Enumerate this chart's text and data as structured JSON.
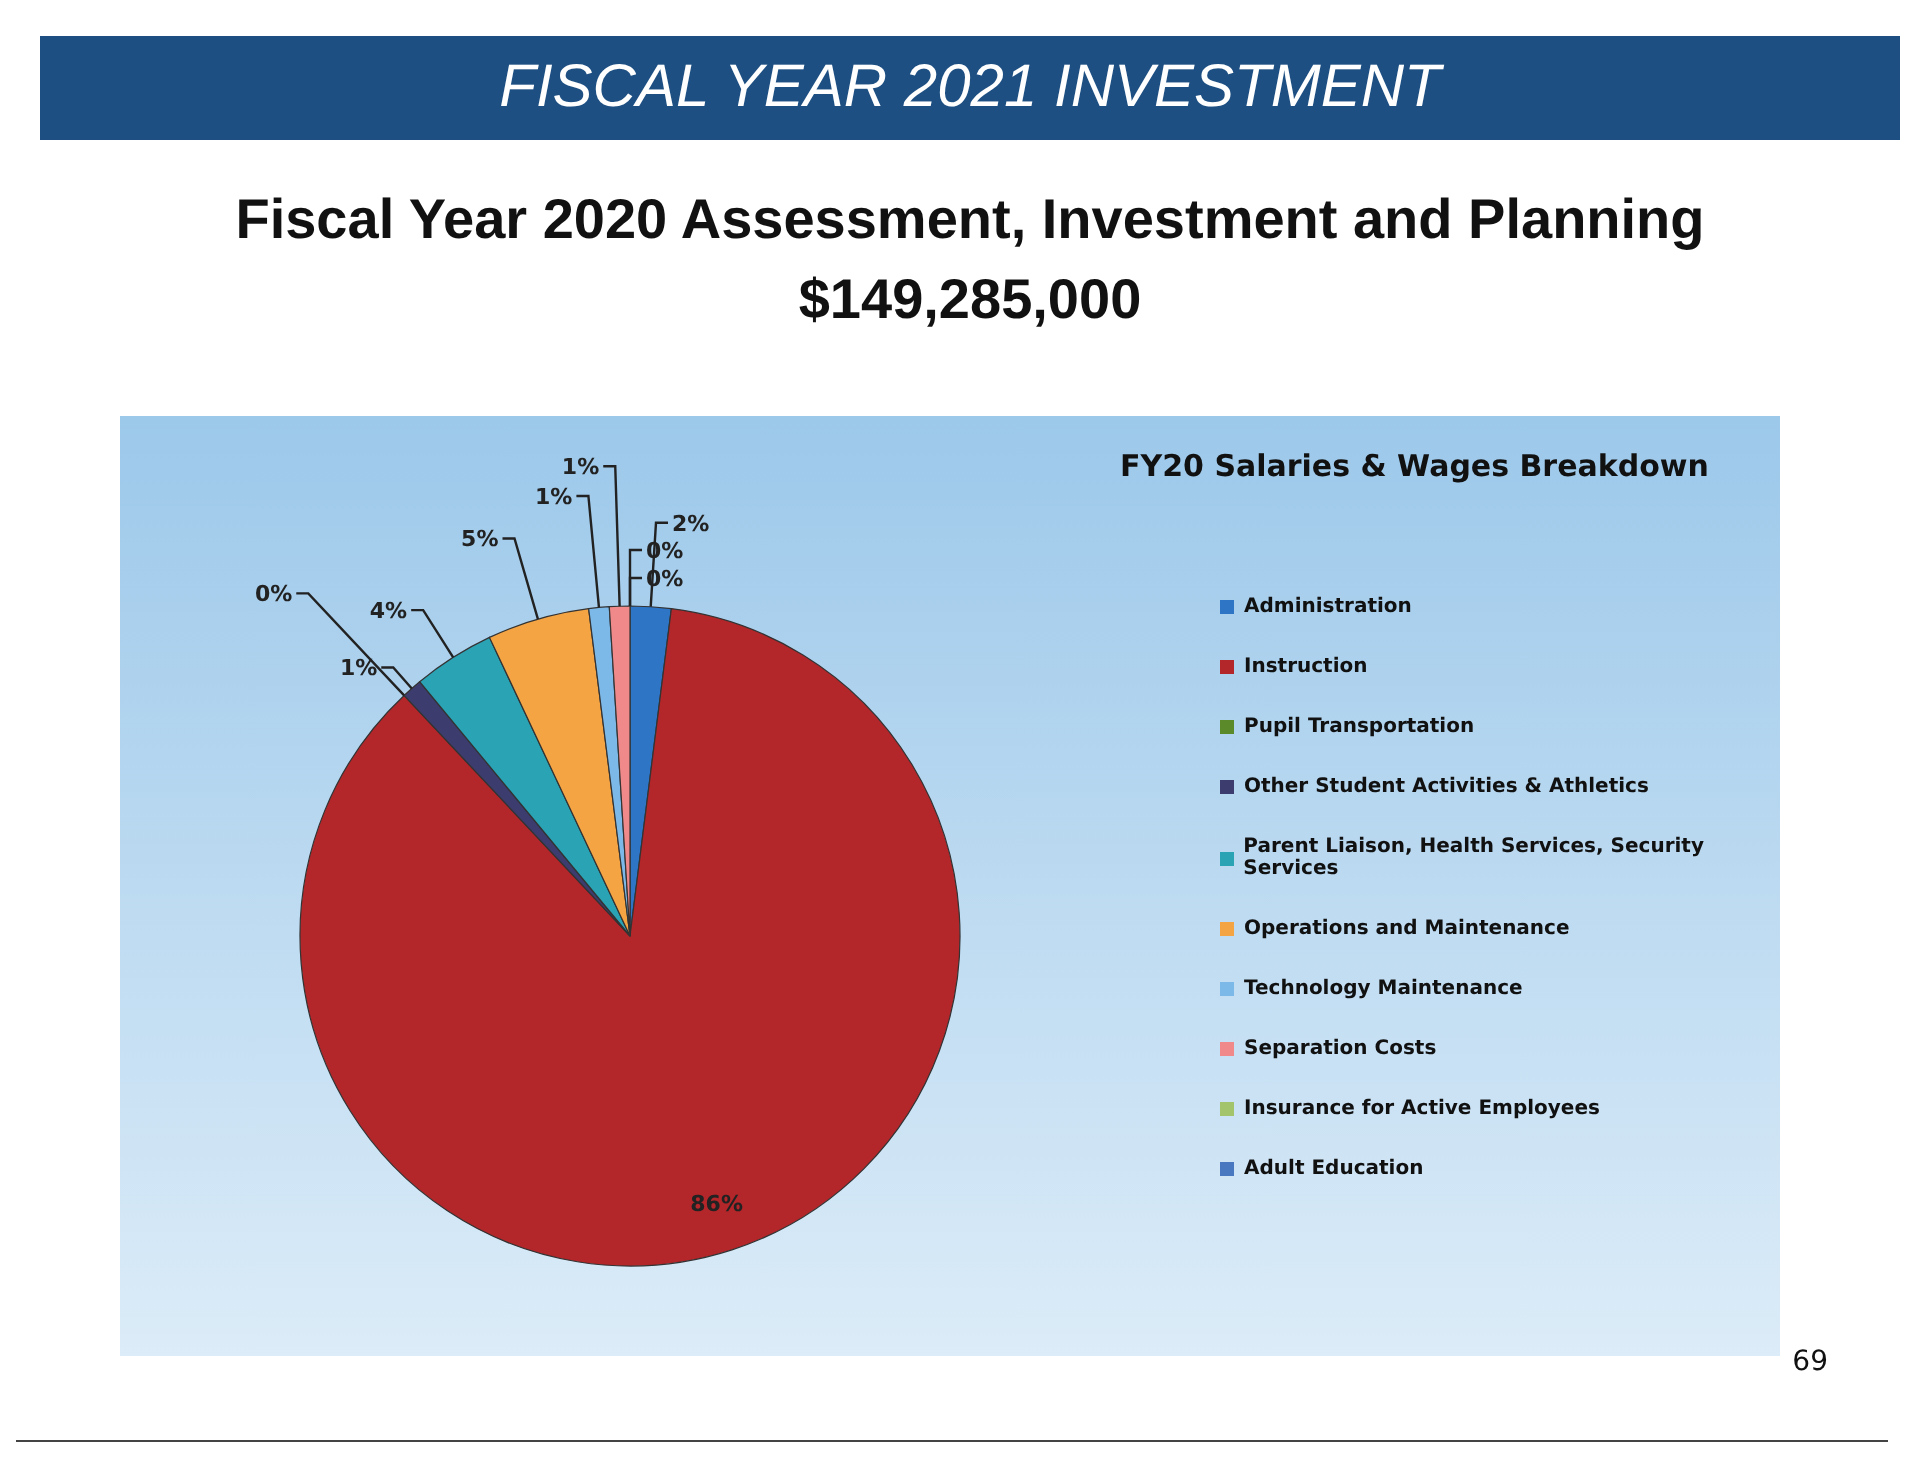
{
  "chart_data": {
    "type": "pie",
    "title": "FISCAL YEAR 2021 INVESTMENT",
    "subtitle": "Fiscal Year 2020 Assessment, Investment and Planning\n$149,285,000",
    "annotations": [
      "FY20 Salaries & Wages Breakdown",
      "69"
    ],
    "categories": [
      "Administration",
      "Instruction",
      "Pupil Transportation",
      "Other Student Activities & Athletics",
      "Parent Liaison, Health Services, Security Services",
      "Operations and Maintenance",
      "Technology Maintenance",
      "Separation Costs",
      "Insurance for Active Employees",
      "Adult Education"
    ],
    "values": [
      2,
      86,
      0,
      1,
      4,
      5,
      1,
      1,
      0,
      0
    ],
    "value_labels": [
      "2%",
      "86%",
      "0%",
      "1%",
      "4%",
      "5%",
      "1%",
      "1%",
      "0%",
      "0%"
    ],
    "colors": [
      "#2e75c6",
      "#b3262a",
      "#5a8a2a",
      "#3c3c6e",
      "#2aa3b5",
      "#f5a443",
      "#7db9e8",
      "#f08a8a",
      "#a3c46a",
      "#4a78c0"
    ],
    "legend": "right"
  }
}
